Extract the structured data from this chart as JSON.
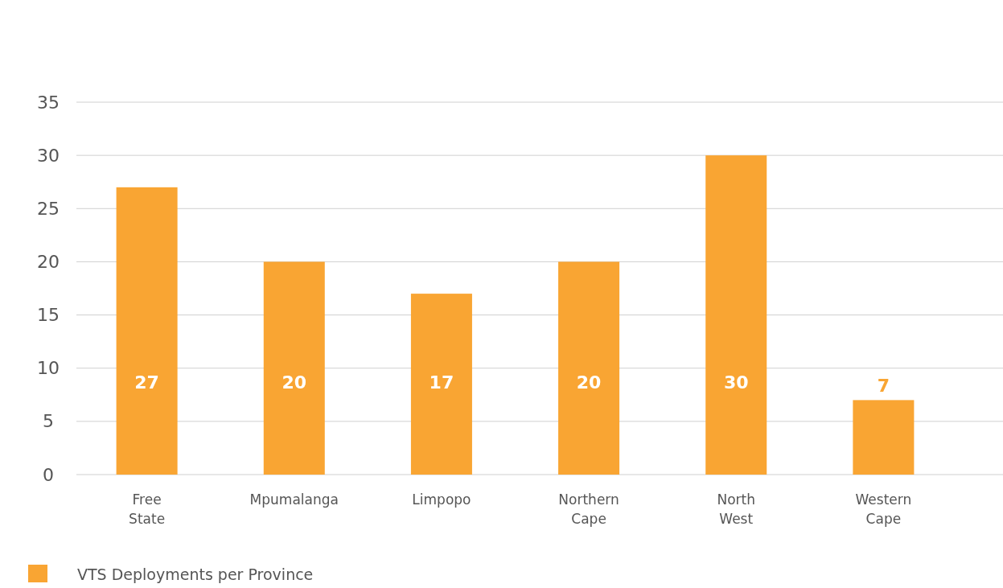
{
  "chart_data": {
    "type": "bar",
    "categories": [
      "Free State",
      "Mpumalanga",
      "Limpopo",
      "Northern Cape",
      "North West",
      "Western Cape"
    ],
    "series": [
      {
        "name": "VTS Deployments per Province",
        "color": "#f9a533",
        "values": [
          27,
          20,
          17,
          20,
          30,
          7
        ]
      }
    ],
    "ylim": [
      0,
      35
    ],
    "yticks": [
      0,
      5,
      10,
      15,
      20,
      25,
      30,
      35
    ],
    "grid": true,
    "legend": "bottom left",
    "data_labels": true
  }
}
